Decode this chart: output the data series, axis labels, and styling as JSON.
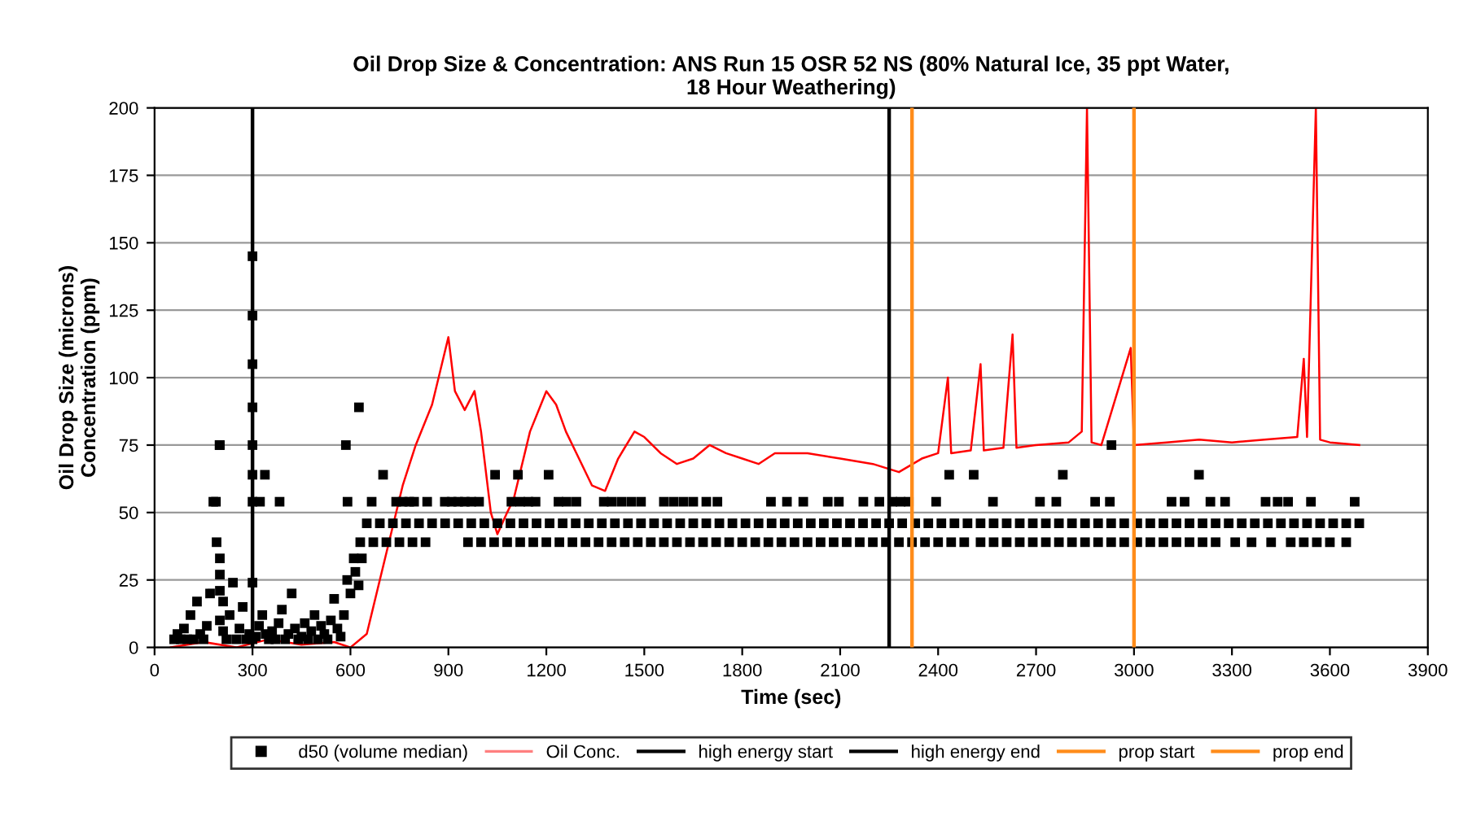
{
  "chart_data": {
    "type": "scatter",
    "title": "Oil Drop Size & Concentration: ANS Run 15 OSR 52 NS (80% Natural Ice, 35 ppt Water,\n18 Hour Weathering)",
    "xlabel": "Time (sec)",
    "ylabel": "Oil Drop Size (microns)\nConcentration (ppm)",
    "xlim": [
      0,
      3900
    ],
    "xticks": [
      0,
      300,
      600,
      900,
      1200,
      1500,
      1800,
      2100,
      2400,
      2700,
      3000,
      3300,
      3600,
      3900
    ],
    "ylim": [
      0,
      200
    ],
    "yticks": [
      0,
      25,
      50,
      75,
      100,
      125,
      150,
      175,
      200
    ],
    "grid": "y",
    "legend": "bottom",
    "series": [
      {
        "name": "d50 (volume median)",
        "marker": "square",
        "color": "#000000",
        "x": [
          60,
          70,
          80,
          90,
          100,
          110,
          120,
          130,
          140,
          150,
          160,
          170,
          180,
          190,
          200,
          200,
          200,
          200,
          200,
          210,
          210,
          220,
          230,
          240,
          250,
          260,
          270,
          280,
          290,
          300,
          300,
          300,
          300,
          300,
          300,
          300,
          300,
          300,
          310,
          320,
          330,
          340,
          350,
          360,
          370,
          380,
          390,
          400,
          410,
          420,
          430,
          440,
          450,
          460,
          470,
          480,
          490,
          500,
          510,
          520,
          530,
          540,
          550,
          560,
          570,
          580,
          590,
          600,
          610,
          615,
          625,
          635,
          188,
          199,
          323,
          383,
          591,
          665,
          740,
          760,
          780,
          795,
          835,
          889,
          910,
          930,
          950,
          970,
          994,
          1093,
          1120,
          1145,
          1167,
          1237,
          1262,
          1292,
          1376,
          1400,
          1430,
          1460,
          1490,
          1560,
          1590,
          1620,
          1650,
          1690,
          1724,
          1888,
          1937,
          1987,
          2062,
          2096,
          2171,
          2220,
          2260,
          2285,
          2310,
          2394,
          2568,
          2712,
          2762,
          2881,
          2926,
          3115,
          3155,
          3234,
          3279,
          3403,
          3440,
          3472,
          3542,
          3676,
          338,
          700,
          1043,
          1113,
          1207,
          2434,
          2509,
          2782,
          3199,
          2931,
          586,
          626,
          650,
          690,
          730,
          770,
          810,
          850,
          890,
          930,
          970,
          1010,
          1050,
          1090,
          1130,
          1170,
          1210,
          1250,
          1290,
          1330,
          1370,
          1410,
          1450,
          1490,
          1530,
          1570,
          1610,
          1650,
          1690,
          1730,
          1770,
          1810,
          1850,
          1890,
          1930,
          1970,
          2010,
          2050,
          2090,
          2130,
          2170,
          2210,
          2250,
          2290,
          2330,
          2370,
          2410,
          2450,
          2490,
          2530,
          2570,
          2610,
          2650,
          2690,
          2730,
          2770,
          2810,
          2850,
          2890,
          2930,
          2970,
          3010,
          3050,
          3090,
          3130,
          3170,
          3210,
          3250,
          3290,
          3330,
          3370,
          3410,
          3450,
          3490,
          3530,
          3570,
          3610,
          3650,
          3690,
          630,
          670,
          710,
          750,
          790,
          830,
          960,
          1000,
          1040,
          1080,
          1120,
          1160,
          1200,
          1240,
          1280,
          1320,
          1360,
          1400,
          1440,
          1480,
          1520,
          1560,
          1600,
          1640,
          1680,
          1720,
          1760,
          1800,
          1840,
          1880,
          1920,
          1960,
          2000,
          2040,
          2080,
          2120,
          2160,
          2200,
          2240,
          2280,
          2320,
          2360,
          2400,
          2440,
          2480,
          2530,
          2570,
          2610,
          2650,
          2690,
          2730,
          2770,
          2810,
          2850,
          2890,
          2930,
          2970,
          3010,
          3050,
          3090,
          3130,
          3170,
          3210,
          3250,
          3310,
          3360,
          3420,
          3480,
          3520,
          3560,
          3600,
          3650
        ],
        "values": [
          3,
          5,
          3,
          7,
          3,
          12,
          3,
          17,
          5,
          3,
          8,
          20,
          54,
          39,
          33,
          27,
          21,
          75,
          10,
          17,
          6,
          3,
          12,
          24,
          3,
          7,
          15,
          3,
          5,
          145,
          123,
          105,
          89,
          75,
          64,
          54,
          24,
          3,
          4,
          8,
          12,
          5,
          3,
          6,
          3,
          9,
          14,
          3,
          5,
          20,
          7,
          3,
          4,
          9,
          3,
          6,
          12,
          3,
          8,
          5,
          3,
          10,
          18,
          7,
          4,
          12,
          25,
          20,
          33,
          28,
          23,
          33,
          54,
          75,
          54,
          54,
          54,
          54,
          54,
          54,
          54,
          54,
          54,
          54,
          54,
          54,
          54,
          54,
          54,
          54,
          54,
          54,
          54,
          54,
          54,
          54,
          54,
          54,
          54,
          54,
          54,
          54,
          54,
          54,
          54,
          54,
          54,
          54,
          54,
          54,
          54,
          54,
          54,
          54,
          54,
          54,
          54,
          54,
          54,
          54,
          54,
          54,
          54,
          54,
          54,
          54,
          54,
          54,
          54,
          54,
          54,
          54,
          64,
          64,
          64,
          64,
          64,
          64,
          64,
          64,
          64,
          75,
          75,
          89,
          46,
          46,
          46,
          46,
          46,
          46,
          46,
          46,
          46,
          46,
          46,
          46,
          46,
          46,
          46,
          46,
          46,
          46,
          46,
          46,
          46,
          46,
          46,
          46,
          46,
          46,
          46,
          46,
          46,
          46,
          46,
          46,
          46,
          46,
          46,
          46,
          46,
          46,
          46,
          46,
          46,
          46,
          46,
          46,
          46,
          46,
          46,
          46,
          46,
          46,
          46,
          46,
          46,
          46,
          46,
          46,
          46,
          46,
          46,
          46,
          46,
          46,
          46,
          46,
          46,
          46,
          46,
          46,
          46,
          46,
          46,
          46,
          46,
          46,
          46,
          46,
          46,
          39,
          39,
          39,
          39,
          39,
          39,
          39,
          39,
          39,
          39,
          39,
          39,
          39,
          39,
          39,
          39,
          39,
          39,
          39,
          39,
          39,
          39,
          39,
          39,
          39,
          39,
          39,
          39,
          39,
          39,
          39,
          39,
          39,
          39,
          39,
          39,
          39,
          39,
          39,
          39,
          39,
          39,
          39,
          39,
          39,
          39,
          39,
          39,
          39,
          39,
          39,
          39,
          39,
          39,
          39,
          39,
          39,
          39,
          39,
          39,
          39,
          39,
          39,
          39,
          39,
          39,
          39,
          39,
          39,
          39,
          39,
          39
        ]
      },
      {
        "name": "Oil Conc.",
        "type": "line",
        "marker": "none",
        "color": "#ff0000",
        "x": [
          50,
          150,
          250,
          350,
          450,
          550,
          600,
          650,
          680,
          720,
          760,
          800,
          850,
          880,
          900,
          920,
          950,
          980,
          1000,
          1030,
          1050,
          1080,
          1100,
          1150,
          1200,
          1230,
          1260,
          1300,
          1340,
          1380,
          1420,
          1470,
          1500,
          1550,
          1600,
          1650,
          1700,
          1750,
          1800,
          1850,
          1900,
          2000,
          2100,
          2200,
          2280,
          2350,
          2400,
          2430,
          2440,
          2500,
          2530,
          2540,
          2600,
          2628,
          2640,
          2700,
          2800,
          2840,
          2856,
          2870,
          2900,
          2990,
          3000,
          3100,
          3200,
          3300,
          3400,
          3500,
          3520,
          3530,
          3557,
          3570,
          3600,
          3690
        ],
        "values": [
          0,
          2,
          0,
          3,
          1,
          2,
          0,
          5,
          20,
          40,
          60,
          75,
          90,
          105,
          115,
          95,
          88,
          95,
          80,
          50,
          42,
          50,
          55,
          80,
          95,
          90,
          80,
          70,
          60,
          58,
          70,
          80,
          78,
          72,
          68,
          70,
          75,
          72,
          70,
          68,
          72,
          72,
          70,
          68,
          65,
          70,
          72,
          100,
          72,
          73,
          105,
          73,
          74,
          116,
          74,
          75,
          76,
          80,
          200,
          76,
          75,
          111,
          75,
          76,
          77,
          76,
          77,
          78,
          107,
          78,
          200,
          77,
          76,
          75
        ]
      }
    ],
    "ref_lines": [
      {
        "axis": "x",
        "value": 300,
        "label": "high energy start",
        "color": "#000000"
      },
      {
        "axis": "x",
        "value": 2250,
        "label": "high energy end",
        "color": "#000000"
      },
      {
        "axis": "x",
        "value": 2320,
        "label": "prop start",
        "color": "#ff8c1a"
      },
      {
        "axis": "x",
        "value": 3000,
        "label": "prop end",
        "color": "#ff8c1a"
      }
    ]
  }
}
